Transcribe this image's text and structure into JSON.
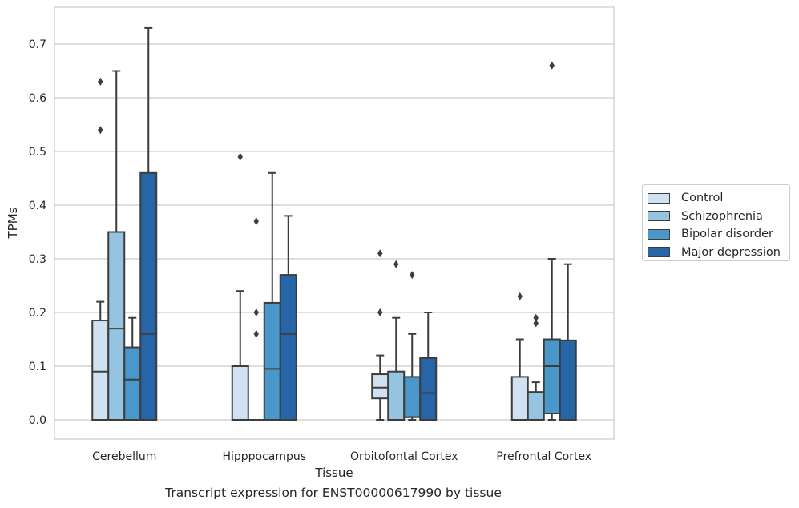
{
  "chart_data": {
    "type": "boxplot",
    "xlabel": "Tissue",
    "ylabel": "TPMs",
    "caption": "Transcript expression for ENST00000617990 by tissue",
    "ylim": [
      -0.035,
      0.77
    ],
    "yticks": [
      "0.0",
      "0.1",
      "0.2",
      "0.3",
      "0.4",
      "0.5",
      "0.6",
      "0.7"
    ],
    "ytick_values": [
      0,
      0.1,
      0.2,
      0.3,
      0.4,
      0.5,
      0.6,
      0.7
    ],
    "grid": true,
    "legend_position": "right",
    "categories": [
      "Cerebellum",
      "Hipppocampus",
      "Orbitofontal Cortex",
      "Prefrontal Cortex"
    ],
    "series": [
      {
        "name": "Control",
        "color": "#d0e1f2"
      },
      {
        "name": "Schizophrenia",
        "color": "#94c4df"
      },
      {
        "name": "Bipolar disorder",
        "color": "#4a98c9"
      },
      {
        "name": "Major depression",
        "color": "#2565a8"
      }
    ],
    "boxes": [
      [
        {
          "whislo": 0,
          "q1": 0,
          "med": 0.09,
          "q3": 0.185,
          "whishi": 0.22,
          "fliers": [
            0.54,
            0.63
          ]
        },
        {
          "whislo": 0,
          "q1": 0,
          "med": 0.17,
          "q3": 0.35,
          "whishi": 0.65,
          "fliers": []
        },
        {
          "whislo": 0,
          "q1": 0,
          "med": 0.075,
          "q3": 0.135,
          "whishi": 0.19,
          "fliers": []
        },
        {
          "whislo": 0,
          "q1": 0,
          "med": 0.16,
          "q3": 0.46,
          "whishi": 0.73,
          "fliers": []
        }
      ],
      [
        {
          "whislo": 0,
          "q1": 0,
          "med": 0,
          "q3": 0.1,
          "whishi": 0.24,
          "fliers": [
            0.49
          ]
        },
        {
          "whislo": 0,
          "q1": 0,
          "med": 0,
          "q3": 0,
          "whishi": 0,
          "fliers": [
            0.16,
            0.2,
            0.37
          ]
        },
        {
          "whislo": 0,
          "q1": 0,
          "med": 0.095,
          "q3": 0.218,
          "whishi": 0.46,
          "fliers": []
        },
        {
          "whislo": 0,
          "q1": 0,
          "med": 0.16,
          "q3": 0.27,
          "whishi": 0.38,
          "fliers": []
        }
      ],
      [
        {
          "whislo": 0,
          "q1": 0.04,
          "med": 0.06,
          "q3": 0.085,
          "whishi": 0.12,
          "fliers": [
            0.2,
            0.31
          ]
        },
        {
          "whislo": 0,
          "q1": 0,
          "med": 0,
          "q3": 0.09,
          "whishi": 0.19,
          "fliers": [
            0.29
          ]
        },
        {
          "whislo": 0,
          "q1": 0.005,
          "med": 0.005,
          "q3": 0.08,
          "whishi": 0.16,
          "fliers": [
            0.27
          ]
        },
        {
          "whislo": 0,
          "q1": 0,
          "med": 0.05,
          "q3": 0.115,
          "whishi": 0.2,
          "fliers": []
        }
      ],
      [
        {
          "whislo": 0,
          "q1": 0,
          "med": 0,
          "q3": 0.08,
          "whishi": 0.15,
          "fliers": [
            0.23
          ]
        },
        {
          "whislo": 0,
          "q1": 0,
          "med": 0,
          "q3": 0.052,
          "whishi": 0.07,
          "fliers": [
            0.18,
            0.19
          ]
        },
        {
          "whislo": 0,
          "q1": 0.012,
          "med": 0.1,
          "q3": 0.15,
          "whishi": 0.3,
          "fliers": [
            0.66
          ]
        },
        {
          "whislo": 0,
          "q1": 0,
          "med": 0,
          "q3": 0.148,
          "whishi": 0.29,
          "fliers": []
        }
      ]
    ]
  }
}
